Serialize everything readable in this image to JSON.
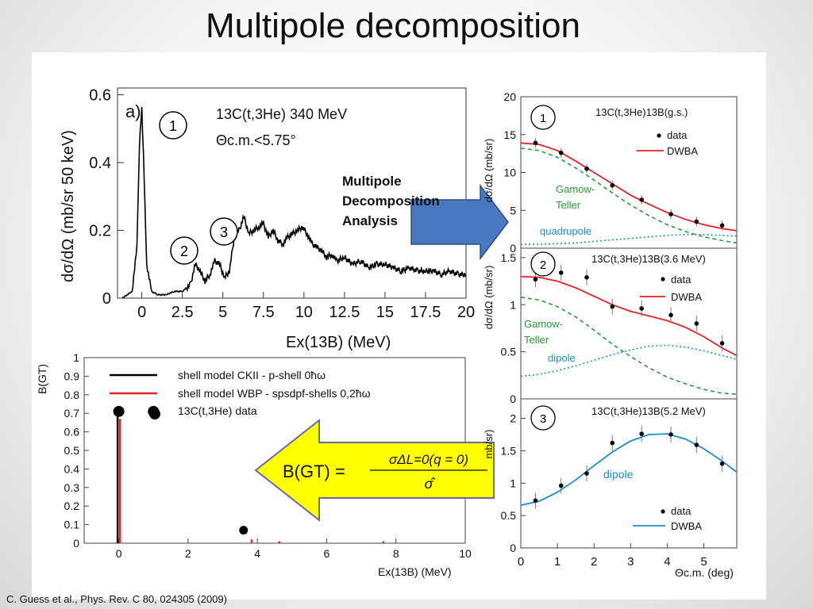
{
  "slide": {
    "title": "Multipole decomposition",
    "citation": "C. Guess et al.,  Phys. Rev. C 80, 024305 (2009)",
    "arrow_text": [
      "Multipole",
      "Decomposition",
      "Analysis"
    ],
    "formula": {
      "lhs": "B(GT) =",
      "numerator": "σΔL=0(q = 0)",
      "denominator": "σ̂"
    }
  },
  "colors": {
    "data": "#000000",
    "dwba": "#e8212a",
    "gt": "#2b9a3b",
    "multipole": "#1a8fd0",
    "arrow_blue": "#4a78c0",
    "arrow_yellow": "#ffff00"
  },
  "chart_data": [
    {
      "id": "spectrum",
      "type": "line",
      "panel_label": "a)",
      "reaction": "13C(t,3He) 340 MeV",
      "angle_cut": "Θc.m.<5.75°",
      "xlabel": "Ex(13B) (MeV)",
      "ylabel": "dσ/dΩ (mb/sr 50 keV)",
      "xlim": [
        -1.5,
        20
      ],
      "ylim": [
        0,
        0.62
      ],
      "xticks": [
        "0",
        "2.5",
        "5",
        "7.5",
        "10",
        "12.5",
        "15",
        "17.5",
        "20"
      ],
      "yticks": [
        "0",
        "0.2",
        "0.4",
        "0.6"
      ],
      "peak_markers": [
        "1",
        "2",
        "3"
      ],
      "x": [
        -1.2,
        -0.6,
        -0.3,
        -0.15,
        0.0,
        0.15,
        0.3,
        0.6,
        1.0,
        1.5,
        2.0,
        2.5,
        3.0,
        3.3,
        3.6,
        3.9,
        4.2,
        4.5,
        4.8,
        5.1,
        5.4,
        5.7,
        6.0,
        6.3,
        6.6,
        6.9,
        7.2,
        7.5,
        7.8,
        8.1,
        8.4,
        8.7,
        9.0,
        9.3,
        9.6,
        9.9,
        10.2,
        10.5,
        10.8,
        11.1,
        11.4,
        11.7,
        12.0,
        12.5,
        13.0,
        13.5,
        14.0,
        14.5,
        15.0,
        15.5,
        16.0,
        16.5,
        17.0,
        17.5,
        18.0,
        18.5,
        19.0,
        19.5,
        20.0
      ],
      "y": [
        0.0,
        0.02,
        0.15,
        0.45,
        0.56,
        0.35,
        0.1,
        0.02,
        0.01,
        0.01,
        0.02,
        0.02,
        0.04,
        0.1,
        0.08,
        0.05,
        0.07,
        0.11,
        0.1,
        0.06,
        0.08,
        0.18,
        0.2,
        0.24,
        0.19,
        0.2,
        0.21,
        0.22,
        0.18,
        0.2,
        0.17,
        0.16,
        0.18,
        0.19,
        0.2,
        0.21,
        0.19,
        0.16,
        0.15,
        0.14,
        0.12,
        0.13,
        0.11,
        0.12,
        0.1,
        0.11,
        0.09,
        0.1,
        0.1,
        0.09,
        0.08,
        0.09,
        0.08,
        0.08,
        0.08,
        0.07,
        0.08,
        0.07,
        0.07
      ]
    },
    {
      "id": "bgt",
      "type": "bar",
      "xlabel": "Ex(13B) (MeV)",
      "ylabel": "B(GT)",
      "xlim": [
        -1,
        10
      ],
      "ylim": [
        0,
        1
      ],
      "xticks": [
        "0",
        "2",
        "4",
        "6",
        "8",
        "10"
      ],
      "yticks": [
        "0",
        "0.1",
        "0.2",
        "0.3",
        "0.4",
        "0.5",
        "0.6",
        "0.7",
        "0.8",
        "0.9",
        "1"
      ],
      "legend": [
        "shell model CKII - p-shell 0ħω",
        "shell model WBP - spsdpf-shells 0,2ħω",
        "13C(t,3He) data"
      ],
      "series": [
        {
          "name": "shell model CKII - p-shell 0ħω",
          "x": [
            0.0
          ],
          "values": [
            0.7
          ]
        },
        {
          "name": "shell model WBP - spsdpf-shells 0,2ħω",
          "x": [
            0.0,
            3.8,
            4.6,
            7.6
          ],
          "values": [
            0.67,
            0.02,
            0.01,
            0.01
          ]
        },
        {
          "name": "13C(t,3He) data",
          "x": [
            0.0,
            1.0,
            3.6
          ],
          "values": [
            0.71,
            0.71,
            0.07
          ]
        }
      ]
    },
    {
      "id": "ang-gs",
      "type": "line",
      "panel_label": "1",
      "reaction": "13C(t,3He)13B(g.s.)",
      "ylabel": "dσ/dΩ (mb/sr)",
      "xlim": [
        0,
        5.9
      ],
      "ylim": [
        0,
        20
      ],
      "yticks": [
        "0",
        "5",
        "10",
        "15",
        "20"
      ],
      "legend": [
        "data",
        "DWBA"
      ],
      "curve_labels": [
        "Gamow-Teller",
        "quadrupole"
      ],
      "data_x": [
        0.4,
        1.1,
        1.8,
        2.5,
        3.3,
        4.1,
        4.8,
        5.5
      ],
      "data_y": [
        13.9,
        12.6,
        10.5,
        8.3,
        6.4,
        4.5,
        3.5,
        3.0
      ],
      "series": [
        {
          "name": "DWBA",
          "x": [
            0.0,
            0.5,
            1.0,
            1.5,
            2.0,
            2.5,
            3.0,
            3.5,
            4.0,
            4.5,
            5.0,
            5.5,
            5.9
          ],
          "values": [
            13.9,
            13.7,
            12.9,
            11.5,
            10.0,
            8.5,
            7.0,
            5.8,
            4.7,
            3.8,
            3.1,
            2.6,
            2.3
          ]
        },
        {
          "name": "Gamow-Teller",
          "x": [
            0.0,
            0.5,
            1.0,
            1.5,
            2.0,
            2.5,
            3.0,
            3.5,
            4.0,
            4.5,
            5.0,
            5.5,
            5.9
          ],
          "values": [
            13.2,
            12.9,
            12.0,
            10.6,
            9.0,
            7.3,
            5.7,
            4.3,
            3.1,
            2.2,
            1.5,
            1.0,
            0.7
          ]
        },
        {
          "name": "quadrupole",
          "x": [
            0.0,
            0.5,
            1.0,
            1.5,
            2.0,
            2.5,
            3.0,
            3.5,
            4.0,
            4.5,
            5.0,
            5.5,
            5.9
          ],
          "values": [
            0.5,
            0.5,
            0.6,
            0.7,
            0.9,
            1.1,
            1.3,
            1.5,
            1.7,
            1.8,
            1.8,
            1.7,
            1.6
          ]
        }
      ]
    },
    {
      "id": "ang-3.6",
      "type": "line",
      "panel_label": "2",
      "reaction": "13C(t,3He)13B(3.6 MeV)",
      "ylabel": "dσ/dΩ (mb/sr)",
      "xlim": [
        0,
        5.9
      ],
      "ylim": [
        0,
        1.6
      ],
      "yticks": [
        "0",
        "0.5",
        "1",
        "1.5"
      ],
      "legend": [
        "data",
        "DWBA"
      ],
      "curve_labels": [
        "Gamow-Teller",
        "dipole"
      ],
      "data_x": [
        0.4,
        1.1,
        1.8,
        2.5,
        3.3,
        4.1,
        4.8,
        5.5
      ],
      "data_y": [
        1.27,
        1.34,
        1.29,
        0.98,
        0.96,
        0.89,
        0.8,
        0.59
      ],
      "series": [
        {
          "name": "DWBA",
          "x": [
            0.0,
            0.5,
            1.0,
            1.5,
            2.0,
            2.5,
            3.0,
            3.5,
            4.0,
            4.5,
            5.0,
            5.5,
            5.9
          ],
          "values": [
            1.3,
            1.29,
            1.25,
            1.18,
            1.09,
            1.0,
            0.93,
            0.88,
            0.83,
            0.76,
            0.66,
            0.54,
            0.46
          ]
        },
        {
          "name": "Gamow-Teller",
          "x": [
            0.0,
            0.5,
            1.0,
            1.5,
            2.0,
            2.5,
            3.0,
            3.5,
            4.0,
            4.5,
            5.0,
            5.5,
            5.9
          ],
          "values": [
            1.08,
            1.05,
            0.98,
            0.87,
            0.73,
            0.58,
            0.45,
            0.33,
            0.23,
            0.16,
            0.1,
            0.06,
            0.05
          ]
        },
        {
          "name": "dipole",
          "x": [
            0.0,
            0.5,
            1.0,
            1.5,
            2.0,
            2.5,
            3.0,
            3.5,
            4.0,
            4.5,
            5.0,
            5.5,
            5.9
          ],
          "values": [
            0.24,
            0.26,
            0.3,
            0.35,
            0.41,
            0.47,
            0.52,
            0.56,
            0.57,
            0.55,
            0.51,
            0.46,
            0.42
          ]
        }
      ]
    },
    {
      "id": "ang-5.2",
      "type": "line",
      "panel_label": "3",
      "reaction": "13C(t,3He)13B(5.2 MeV)",
      "ylabel": "mb/sr)",
      "xlabel": "Θc.m. (deg)",
      "xlim": [
        0,
        5.9
      ],
      "ylim": [
        0,
        2.3
      ],
      "xticks": [
        "0",
        "1",
        "2",
        "3",
        "4",
        "5"
      ],
      "yticks": [
        "0",
        "0.5",
        "1",
        "1.5",
        "2"
      ],
      "legend": [
        "data",
        "DWBA"
      ],
      "curve_labels": [
        "dipole"
      ],
      "data_x": [
        0.4,
        1.1,
        1.8,
        2.5,
        3.3,
        4.1,
        4.8,
        5.5
      ],
      "data_y": [
        0.73,
        0.96,
        1.15,
        1.62,
        1.76,
        1.75,
        1.59,
        1.3
      ],
      "series": [
        {
          "name": "DWBA",
          "x": [
            0.0,
            0.5,
            1.0,
            1.5,
            2.0,
            2.5,
            3.0,
            3.5,
            4.0,
            4.5,
            5.0,
            5.5,
            5.9
          ],
          "values": [
            0.66,
            0.72,
            0.86,
            1.05,
            1.27,
            1.48,
            1.65,
            1.75,
            1.76,
            1.68,
            1.53,
            1.34,
            1.17
          ]
        }
      ]
    }
  ]
}
